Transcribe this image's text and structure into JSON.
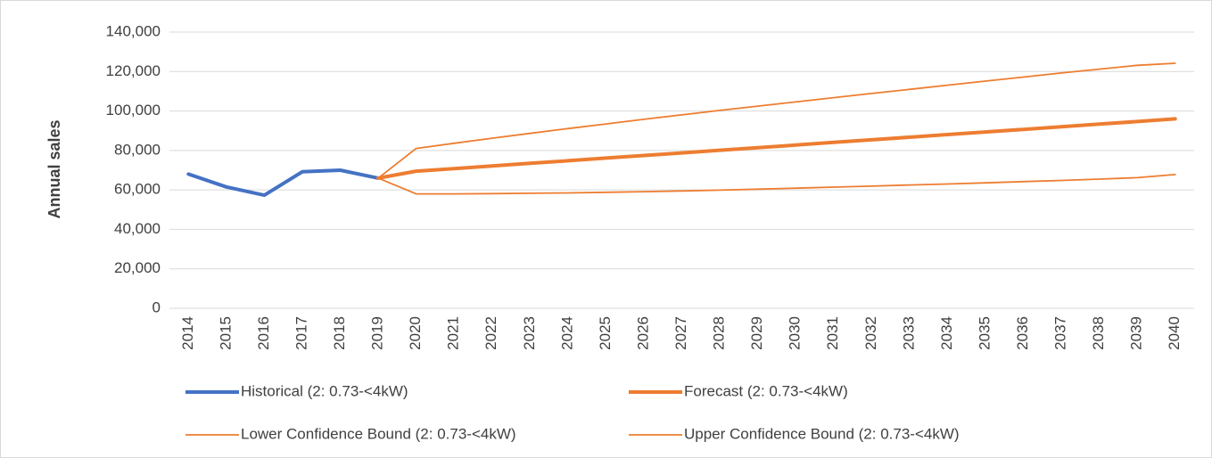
{
  "chart_data": {
    "type": "line",
    "y_label": "Annual sales",
    "categories": [
      "2014",
      "2015",
      "2016",
      "2017",
      "2018",
      "2019",
      "2020",
      "2021",
      "2022",
      "2023",
      "2024",
      "2025",
      "2026",
      "2027",
      "2028",
      "2029",
      "2030",
      "2031",
      "2032",
      "2033",
      "2034",
      "2035",
      "2036",
      "2037",
      "2038",
      "2039",
      "2040"
    ],
    "ylim": [
      0,
      140000
    ],
    "yticks": [
      0,
      {
        "value": 20000,
        "label": "20,000"
      },
      {
        "value": 40000,
        "label": "40,000"
      },
      {
        "value": 60000,
        "label": "60,000"
      },
      {
        "value": 80000,
        "label": "80,000"
      },
      {
        "value": 100000,
        "label": "100,000"
      },
      {
        "value": 120000,
        "label": "120,000"
      },
      {
        "value": 140000,
        "label": "140,000"
      }
    ],
    "grid": true,
    "legend": "bottom",
    "series": [
      {
        "name": "Historical (2: 0.73-<4kW)",
        "color": "#4472c4",
        "width": 4,
        "values": [
          68000,
          61500,
          57300,
          69200,
          70000,
          66000,
          null,
          null,
          null,
          null,
          null,
          null,
          null,
          null,
          null,
          null,
          null,
          null,
          null,
          null,
          null,
          null,
          null,
          null,
          null,
          null,
          null
        ]
      },
      {
        "name": "Forecast (2: 0.73-<4kW)",
        "color": "#ed7d31",
        "width": 4,
        "values": [
          null,
          null,
          null,
          null,
          null,
          66000,
          69500,
          70830,
          72150,
          73480,
          74800,
          76130,
          77450,
          78780,
          80100,
          81430,
          82750,
          84080,
          85400,
          86730,
          88050,
          89380,
          90700,
          92030,
          93350,
          94680,
          96000
        ]
      },
      {
        "name": "Lower Confidence Bound (2: 0.73-<4kW)",
        "color": "#ed7d31",
        "width": 1.8,
        "values": [
          null,
          null,
          null,
          null,
          null,
          66000,
          58000,
          58000,
          58100,
          58300,
          58500,
          58800,
          59100,
          59500,
          59900,
          60400,
          60900,
          61400,
          61900,
          62500,
          63000,
          63600,
          64200,
          64800,
          65500,
          66200,
          67800
        ]
      },
      {
        "name": "Upper Confidence Bound (2: 0.73-<4kW)",
        "color": "#ed7d31",
        "width": 1.8,
        "values": [
          null,
          null,
          null,
          null,
          null,
          66000,
          81000,
          83660,
          86200,
          88660,
          91100,
          93460,
          95800,
          98060,
          100300,
          102460,
          104600,
          106760,
          108900,
          110960,
          113100,
          115160,
          117200,
          119260,
          121200,
          123160,
          124200
        ]
      }
    ]
  }
}
